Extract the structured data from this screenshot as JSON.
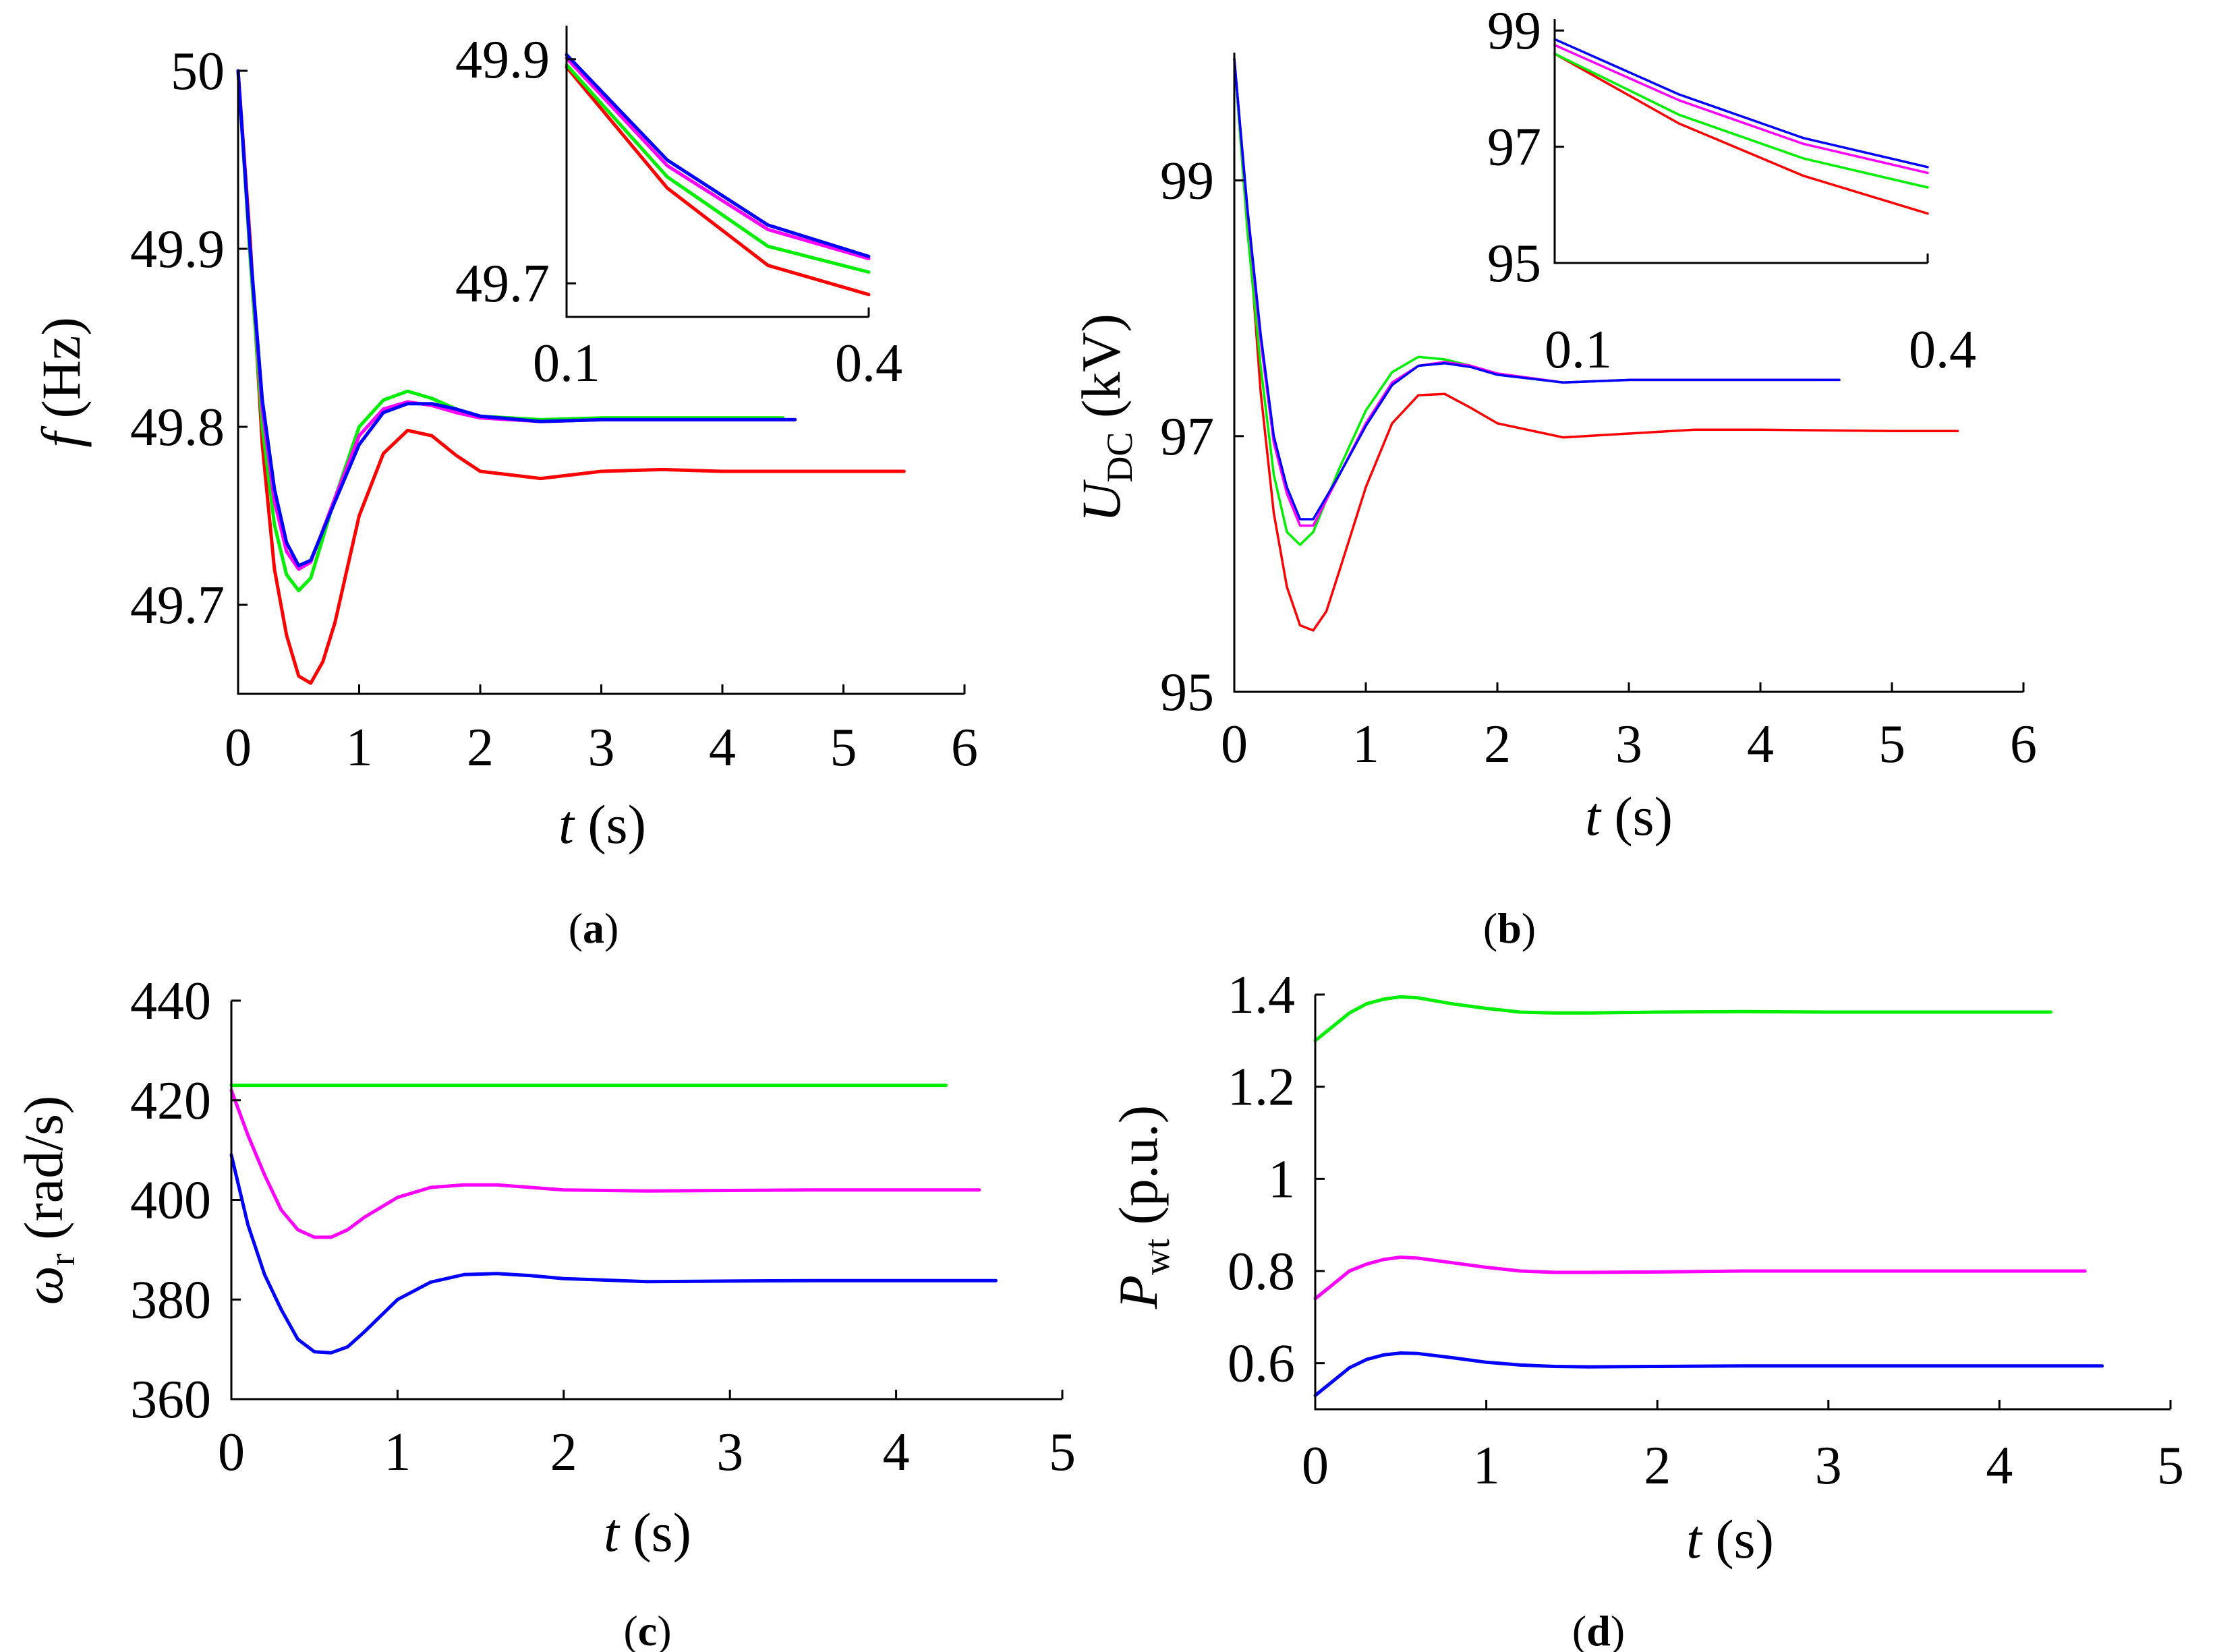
{
  "colors": {
    "red": "#ff0000",
    "green": "#00ee00",
    "magenta": "#ff00ff",
    "blue": "#0000ff"
  },
  "chart_data": [
    {
      "id": "a",
      "type": "line",
      "panel_label": "a",
      "xlabel_italic": "t",
      "xlabel_rest": " (s)",
      "ylabel_italic": "f",
      "ylabel_rest": " (Hz)",
      "xlim": [
        0,
        6
      ],
      "ylim": [
        49.65,
        50
      ],
      "xticks": [
        "0",
        "1",
        "2",
        "3",
        "4",
        "5",
        "6"
      ],
      "yticks": [
        "49.7",
        "49.8",
        "49.9",
        "50"
      ],
      "series": [
        {
          "color": "red",
          "x": [
            0,
            0.1,
            0.2,
            0.3,
            0.4,
            0.5,
            0.6,
            0.7,
            0.8,
            1,
            1.2,
            1.4,
            1.6,
            1.8,
            2,
            2.5,
            3,
            3.5,
            4,
            5,
            5.5
          ],
          "y": [
            50,
            49.905,
            49.79,
            49.72,
            49.683,
            49.66,
            49.656,
            49.668,
            49.69,
            49.75,
            49.785,
            49.798,
            49.795,
            49.784,
            49.775,
            49.771,
            49.775,
            49.776,
            49.775,
            49.775,
            49.775
          ]
        },
        {
          "color": "green",
          "x": [
            0,
            0.1,
            0.2,
            0.3,
            0.4,
            0.5,
            0.6,
            0.8,
            1,
            1.2,
            1.4,
            1.6,
            1.8,
            2,
            2.5,
            3,
            3.5,
            4,
            4.5
          ],
          "y": [
            50,
            49.895,
            49.8,
            49.745,
            49.717,
            49.708,
            49.715,
            49.76,
            49.8,
            49.815,
            49.82,
            49.816,
            49.81,
            49.806,
            49.804,
            49.805,
            49.805,
            49.805,
            49.805
          ]
        },
        {
          "color": "magenta",
          "x": [
            0,
            0.1,
            0.2,
            0.3,
            0.4,
            0.5,
            0.6,
            0.8,
            1,
            1.2,
            1.4,
            1.6,
            1.8,
            2,
            2.5,
            3,
            3.5,
            4,
            4.6
          ],
          "y": [
            50,
            49.9,
            49.81,
            49.758,
            49.73,
            49.72,
            49.724,
            49.76,
            49.795,
            49.81,
            49.814,
            49.812,
            49.808,
            49.805,
            49.803,
            49.804,
            49.804,
            49.804,
            49.804
          ]
        },
        {
          "color": "blue",
          "x": [
            0,
            0.1,
            0.2,
            0.3,
            0.4,
            0.5,
            0.6,
            0.8,
            1,
            1.2,
            1.4,
            1.6,
            1.8,
            2,
            2.5,
            3,
            3.5,
            4,
            4.6
          ],
          "y": [
            50,
            49.9,
            49.815,
            49.765,
            49.735,
            49.722,
            49.725,
            49.758,
            49.79,
            49.808,
            49.813,
            49.813,
            49.81,
            49.806,
            49.803,
            49.804,
            49.804,
            49.804,
            49.804
          ]
        }
      ],
      "inset": {
        "xlim": [
          0.1,
          0.4
        ],
        "ylim": [
          49.67,
          49.93
        ],
        "xticks": [
          "0.1",
          "0.4"
        ],
        "yticks": [
          "49.7",
          "49.9"
        ],
        "series": [
          {
            "color": "red",
            "x": [
              0.1,
              0.2,
              0.3,
              0.4
            ],
            "y": [
              49.893,
              49.785,
              49.716,
              49.69
            ]
          },
          {
            "color": "green",
            "x": [
              0.1,
              0.2,
              0.3,
              0.4
            ],
            "y": [
              49.895,
              49.795,
              49.733,
              49.71
            ]
          },
          {
            "color": "magenta",
            "x": [
              0.1,
              0.2,
              0.3,
              0.4
            ],
            "y": [
              49.901,
              49.805,
              49.748,
              49.722
            ]
          },
          {
            "color": "blue",
            "x": [
              0.1,
              0.2,
              0.3,
              0.4
            ],
            "y": [
              49.904,
              49.81,
              49.752,
              49.724
            ]
          }
        ]
      }
    },
    {
      "id": "b",
      "type": "line",
      "panel_label": "b",
      "xlabel_italic": "t",
      "xlabel_rest": " (s)",
      "ylabel_italic": "U",
      "ylabel_sub": "DC",
      "ylabel_rest": " (kV)",
      "xlim": [
        0,
        6
      ],
      "ylim": [
        95,
        100
      ],
      "xticks": [
        "0",
        "1",
        "2",
        "3",
        "4",
        "5",
        "6"
      ],
      "yticks": [
        "95",
        "97",
        "99"
      ],
      "series": [
        {
          "color": "red",
          "x": [
            0,
            0.1,
            0.2,
            0.3,
            0.4,
            0.5,
            0.6,
            0.7,
            0.8,
            1,
            1.2,
            1.4,
            1.6,
            1.8,
            2,
            2.5,
            3,
            3.5,
            4,
            5,
            5.5
          ],
          "y": [
            99.95,
            98.75,
            97.35,
            96.4,
            95.82,
            95.52,
            95.48,
            95.63,
            95.95,
            96.6,
            97.1,
            97.32,
            97.33,
            97.22,
            97.1,
            96.99,
            97.02,
            97.05,
            97.05,
            97.04,
            97.04
          ]
        },
        {
          "color": "green",
          "x": [
            0,
            0.1,
            0.2,
            0.3,
            0.4,
            0.5,
            0.6,
            0.8,
            1,
            1.2,
            1.4,
            1.6,
            1.8,
            2,
            2.5,
            3,
            3.5,
            4,
            4.5
          ],
          "y": [
            99.95,
            98.6,
            97.55,
            96.7,
            96.25,
            96.15,
            96.25,
            96.75,
            97.2,
            97.5,
            97.62,
            97.6,
            97.55,
            97.48,
            97.42,
            97.44,
            97.44,
            97.44,
            97.44
          ]
        },
        {
          "color": "magenta",
          "x": [
            0,
            0.1,
            0.2,
            0.3,
            0.4,
            0.5,
            0.6,
            0.8,
            1,
            1.2,
            1.4,
            1.6,
            1.8,
            2,
            2.5,
            3,
            3.5,
            4,
            4.6
          ],
          "y": [
            99.95,
            98.75,
            97.75,
            96.95,
            96.55,
            96.3,
            96.3,
            96.7,
            97.1,
            97.42,
            97.55,
            97.58,
            97.55,
            97.49,
            97.42,
            97.44,
            97.44,
            97.44,
            97.44
          ]
        },
        {
          "color": "blue",
          "x": [
            0,
            0.1,
            0.2,
            0.3,
            0.4,
            0.5,
            0.6,
            0.8,
            1,
            1.2,
            1.4,
            1.6,
            1.8,
            2,
            2.5,
            3,
            3.5,
            4,
            4.6
          ],
          "y": [
            99.95,
            98.78,
            97.8,
            97.0,
            96.6,
            96.35,
            96.35,
            96.7,
            97.08,
            97.4,
            97.55,
            97.57,
            97.54,
            97.48,
            97.42,
            97.44,
            97.44,
            97.44,
            97.44
          ]
        }
      ],
      "inset": {
        "xlim": [
          0.1,
          0.4
        ],
        "ylim": [
          95,
          99.2
        ],
        "xticks": [
          "0.1",
          "0.4"
        ],
        "yticks": [
          "95",
          "97",
          "99"
        ],
        "series": [
          {
            "color": "red",
            "x": [
              0.1,
              0.2,
              0.3,
              0.4
            ],
            "y": [
              98.6,
              97.4,
              96.5,
              95.85
            ]
          },
          {
            "color": "green",
            "x": [
              0.1,
              0.2,
              0.3,
              0.4
            ],
            "y": [
              98.6,
              97.55,
              96.8,
              96.3
            ]
          },
          {
            "color": "magenta",
            "x": [
              0.1,
              0.2,
              0.3,
              0.4
            ],
            "y": [
              98.75,
              97.8,
              97.05,
              96.55
            ]
          },
          {
            "color": "blue",
            "x": [
              0.1,
              0.2,
              0.3,
              0.4
            ],
            "y": [
              98.85,
              97.9,
              97.15,
              96.65
            ]
          }
        ]
      }
    },
    {
      "id": "c",
      "type": "line",
      "panel_label": "c",
      "xlabel_italic": "t",
      "xlabel_rest": " (s)",
      "ylabel_italic": "ω",
      "ylabel_sub": "r",
      "ylabel_rest": " (rad/s)",
      "xlim": [
        0,
        5
      ],
      "ylim": [
        360,
        440
      ],
      "xticks": [
        "0",
        "1",
        "2",
        "3",
        "4",
        "5"
      ],
      "yticks": [
        "360",
        "380",
        "400",
        "420",
        "440"
      ],
      "series": [
        {
          "color": "green",
          "x": [
            0,
            4.3
          ],
          "y": [
            423,
            423
          ]
        },
        {
          "color": "magenta",
          "x": [
            0,
            0.1,
            0.2,
            0.3,
            0.4,
            0.5,
            0.6,
            0.7,
            0.8,
            1,
            1.2,
            1.4,
            1.6,
            1.8,
            2,
            2.5,
            3,
            3.5,
            4,
            4.5
          ],
          "y": [
            422,
            413,
            405,
            398,
            394,
            392.5,
            392.5,
            394,
            396.5,
            400.5,
            402.5,
            403,
            403,
            402.5,
            402,
            401.8,
            401.9,
            402,
            402,
            402
          ]
        },
        {
          "color": "blue",
          "x": [
            0,
            0.1,
            0.2,
            0.3,
            0.4,
            0.5,
            0.6,
            0.7,
            0.8,
            1,
            1.2,
            1.4,
            1.6,
            1.8,
            2,
            2.5,
            3,
            3.5,
            4,
            4.6
          ],
          "y": [
            409,
            395,
            385,
            378,
            372,
            369.5,
            369.3,
            370.5,
            373.5,
            380,
            383.5,
            385,
            385.2,
            384.8,
            384.2,
            383.6,
            383.7,
            383.8,
            383.8,
            383.8
          ]
        }
      ]
    },
    {
      "id": "d",
      "type": "line",
      "panel_label": "d",
      "xlabel_italic": "t",
      "xlabel_rest": " (s)",
      "ylabel_italic": "P",
      "ylabel_sub": "wt",
      "ylabel_rest": " (p.u.)",
      "xlim": [
        0,
        5
      ],
      "ylim": [
        0.5,
        1.4
      ],
      "xticks": [
        "0",
        "1",
        "2",
        "3",
        "4",
        "5"
      ],
      "yticks": [
        "0.6",
        "0.8",
        "1",
        "1.2",
        "1.4"
      ],
      "series": [
        {
          "color": "green",
          "x": [
            0,
            0.1,
            0.2,
            0.3,
            0.4,
            0.5,
            0.6,
            0.8,
            1,
            1.2,
            1.4,
            1.6,
            2,
            2.5,
            3,
            3.5,
            4,
            4.3
          ],
          "y": [
            1.3,
            1.33,
            1.36,
            1.38,
            1.39,
            1.395,
            1.393,
            1.38,
            1.37,
            1.362,
            1.36,
            1.36,
            1.362,
            1.363,
            1.362,
            1.362,
            1.362,
            1.362
          ]
        },
        {
          "color": "magenta",
          "x": [
            0,
            0.1,
            0.2,
            0.3,
            0.4,
            0.5,
            0.6,
            0.8,
            1,
            1.2,
            1.4,
            1.6,
            2,
            2.5,
            3,
            3.5,
            4,
            4.5
          ],
          "y": [
            0.74,
            0.77,
            0.8,
            0.815,
            0.825,
            0.83,
            0.828,
            0.818,
            0.808,
            0.8,
            0.797,
            0.797,
            0.798,
            0.8,
            0.8,
            0.8,
            0.8,
            0.8
          ]
        },
        {
          "color": "blue",
          "x": [
            0,
            0.1,
            0.2,
            0.3,
            0.4,
            0.5,
            0.6,
            0.8,
            1,
            1.2,
            1.4,
            1.6,
            2,
            2.5,
            3,
            3.5,
            4,
            4.6
          ],
          "y": [
            0.53,
            0.56,
            0.59,
            0.608,
            0.618,
            0.622,
            0.621,
            0.612,
            0.602,
            0.596,
            0.593,
            0.592,
            0.593,
            0.594,
            0.594,
            0.594,
            0.594,
            0.594
          ]
        }
      ]
    }
  ]
}
